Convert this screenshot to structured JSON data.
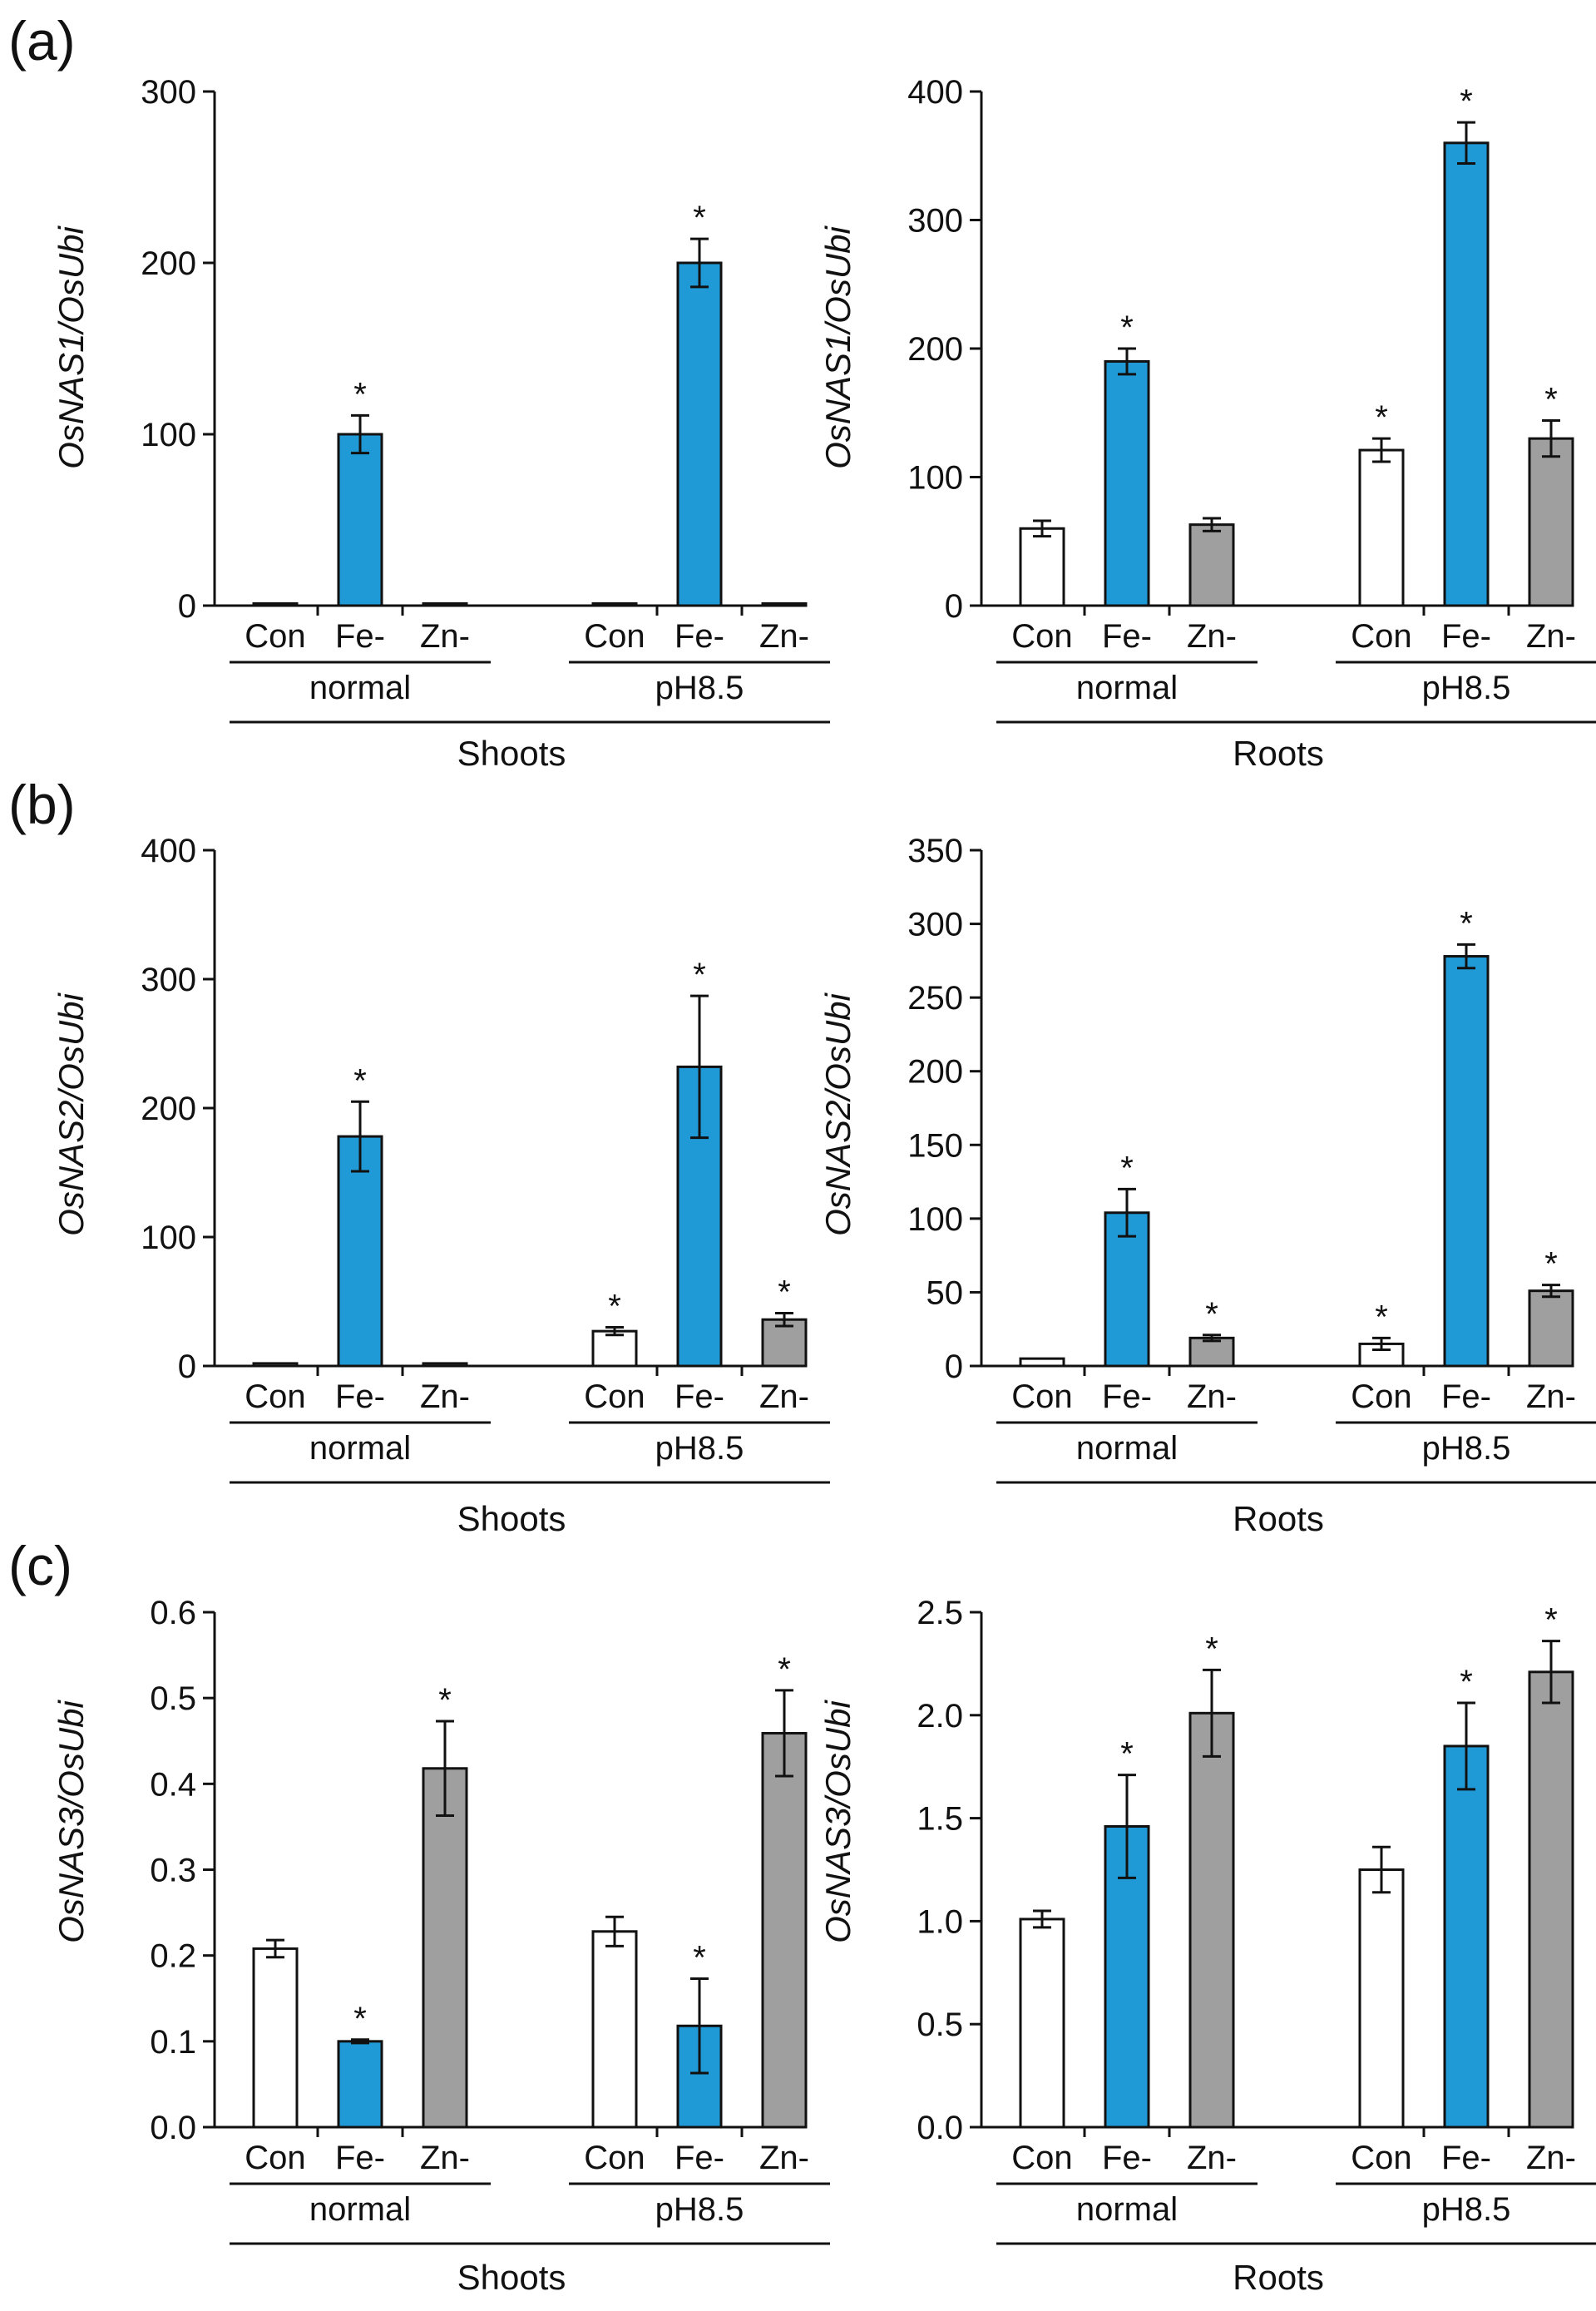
{
  "colors": {
    "con": "#ffffff",
    "fe": "#1f9ad6",
    "zn": "#9f9f9f",
    "outline": "#111111"
  },
  "chart_data": [
    {
      "type": "bar",
      "panel_label": "(a)",
      "tissue": "Shoots",
      "ylabel": "OsNAS1/OsUbi",
      "ylim": [
        0,
        300
      ],
      "yticks": [
        "0",
        "100",
        "200",
        "300"
      ],
      "groups": [
        {
          "name": "normal",
          "categories": [
            "Con",
            "Fe-",
            "Zn-"
          ],
          "values": [
            1,
            100,
            1
          ],
          "errors": [
            0,
            11,
            0
          ],
          "significant": [
            false,
            true,
            false
          ]
        },
        {
          "name": "pH8.5",
          "categories": [
            "Con",
            "Fe-",
            "Zn-"
          ],
          "values": [
            1,
            200,
            1
          ],
          "errors": [
            0,
            14,
            0
          ],
          "significant": [
            false,
            true,
            false
          ]
        }
      ]
    },
    {
      "type": "bar",
      "panel_label": "",
      "tissue": "Roots",
      "ylabel": "OsNAS1/OsUbi",
      "ylim": [
        0,
        400
      ],
      "yticks": [
        "0",
        "100",
        "200",
        "300",
        "400"
      ],
      "groups": [
        {
          "name": "normal",
          "categories": [
            "Con",
            "Fe-",
            "Zn-"
          ],
          "values": [
            60,
            190,
            63
          ],
          "errors": [
            6,
            10,
            5
          ],
          "significant": [
            false,
            true,
            false
          ]
        },
        {
          "name": "pH8.5",
          "categories": [
            "Con",
            "Fe-",
            "Zn-"
          ],
          "values": [
            121,
            360,
            130
          ],
          "errors": [
            9,
            16,
            14
          ],
          "significant": [
            true,
            true,
            true
          ]
        }
      ]
    },
    {
      "type": "bar",
      "panel_label": "(b)",
      "tissue": "Shoots",
      "ylabel": "OsNAS2/OsUbi",
      "ylim": [
        0,
        400
      ],
      "yticks": [
        "0",
        "100",
        "200",
        "300",
        "400"
      ],
      "groups": [
        {
          "name": "normal",
          "categories": [
            "Con",
            "Fe-",
            "Zn-"
          ],
          "values": [
            2,
            178,
            2
          ],
          "errors": [
            0,
            27,
            0
          ],
          "significant": [
            false,
            true,
            false
          ]
        },
        {
          "name": "pH8.5",
          "categories": [
            "Con",
            "Fe-",
            "Zn-"
          ],
          "values": [
            27,
            232,
            36
          ],
          "errors": [
            3,
            55,
            5
          ],
          "significant": [
            true,
            true,
            true
          ]
        }
      ]
    },
    {
      "type": "bar",
      "panel_label": "",
      "tissue": "Roots",
      "ylabel": "OsNAS2/OsUbi",
      "ylim": [
        0,
        350
      ],
      "yticks": [
        "0",
        "50",
        "100",
        "150",
        "200",
        "250",
        "300",
        "350"
      ],
      "groups": [
        {
          "name": "normal",
          "categories": [
            "Con",
            "Fe-",
            "Zn-"
          ],
          "values": [
            5,
            104,
            19
          ],
          "errors": [
            0,
            16,
            2
          ],
          "significant": [
            false,
            true,
            true
          ]
        },
        {
          "name": "pH8.5",
          "categories": [
            "Con",
            "Fe-",
            "Zn-"
          ],
          "values": [
            15,
            278,
            51
          ],
          "errors": [
            4,
            8,
            4
          ],
          "significant": [
            true,
            true,
            true
          ]
        }
      ]
    },
    {
      "type": "bar",
      "panel_label": "(c)",
      "tissue": "Shoots",
      "ylabel": "OsNAS3/OsUbi",
      "ylim": [
        0,
        0.6
      ],
      "yticks": [
        "0.0",
        "0.1",
        "0.2",
        "0.3",
        "0.4",
        "0.5",
        "0.6"
      ],
      "groups": [
        {
          "name": "normal",
          "categories": [
            "Con",
            "Fe-",
            "Zn-"
          ],
          "values": [
            0.208,
            0.1,
            0.418
          ],
          "errors": [
            0.01,
            0.002,
            0.055
          ],
          "significant": [
            false,
            true,
            true
          ]
        },
        {
          "name": "pH8.5",
          "categories": [
            "Con",
            "Fe-",
            "Zn-"
          ],
          "values": [
            0.228,
            0.118,
            0.459
          ],
          "errors": [
            0.017,
            0.055,
            0.05
          ],
          "significant": [
            false,
            true,
            true
          ]
        }
      ]
    },
    {
      "type": "bar",
      "panel_label": "",
      "tissue": "Roots",
      "ylabel": "OsNAS3/OsUbi",
      "ylim": [
        0,
        2.5
      ],
      "yticks": [
        "0.0",
        "0.5",
        "1.0",
        "1.5",
        "2.0",
        "2.5"
      ],
      "groups": [
        {
          "name": "normal",
          "categories": [
            "Con",
            "Fe-",
            "Zn-"
          ],
          "values": [
            1.01,
            1.46,
            2.01
          ],
          "errors": [
            0.04,
            0.25,
            0.21
          ],
          "significant": [
            false,
            true,
            true
          ]
        },
        {
          "name": "pH8.5",
          "categories": [
            "Con",
            "Fe-",
            "Zn-"
          ],
          "values": [
            1.25,
            1.85,
            2.21
          ],
          "errors": [
            0.11,
            0.21,
            0.15
          ],
          "significant": [
            false,
            true,
            true
          ]
        }
      ]
    }
  ]
}
